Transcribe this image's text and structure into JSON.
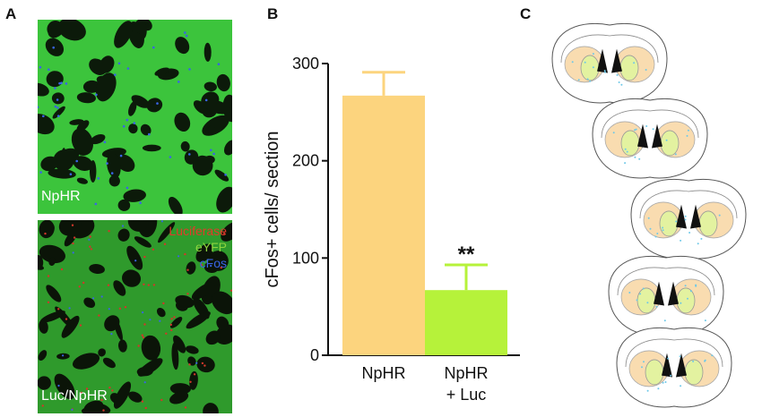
{
  "panels": {
    "a": {
      "letter": "A",
      "top_image_label": "NpHR",
      "bottom_image_label": "Luc/NpHR",
      "legend": [
        {
          "text": "Luciferase",
          "color": "#e23a2a"
        },
        {
          "text": "eYFP",
          "color": "#7fd13a"
        },
        {
          "text": "cFos",
          "color": "#3a64e6"
        }
      ]
    },
    "b": {
      "letter": "B"
    },
    "c": {
      "letter": "C"
    }
  },
  "colors": {
    "bar_npHR": "#fcd47e",
    "bar_npHR_luc": "#b6f23a",
    "tissue_green": "#3cc43c",
    "section_fill_orange": "#f9dcb0",
    "section_fill_green": "#e3f2a0",
    "dots_blue": "#6ec8e8"
  },
  "chart_data": {
    "type": "bar",
    "categories": [
      "NpHR",
      "NpHR\n+ Luc"
    ],
    "values": [
      267,
      67
    ],
    "errors": [
      24,
      26
    ],
    "ylabel": "cFos+ cells/ section",
    "ylim": [
      0,
      300
    ],
    "yticks": [
      0,
      100,
      200,
      300
    ],
    "annotations": [
      {
        "category_index": 1,
        "text": "**"
      }
    ],
    "grid": false
  }
}
